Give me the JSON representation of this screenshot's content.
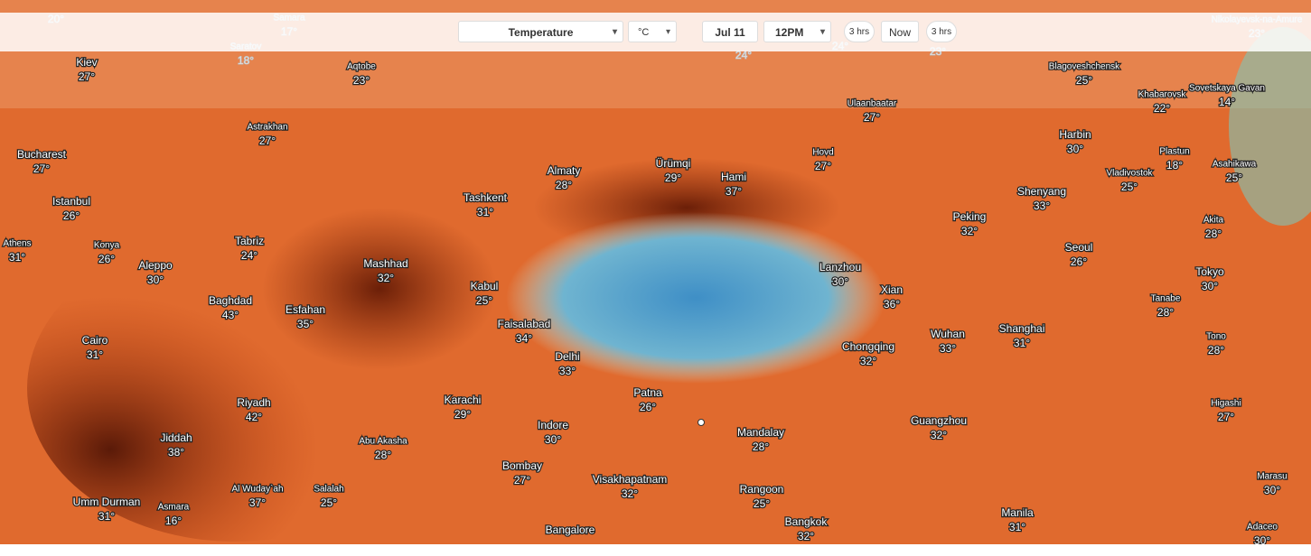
{
  "toolbar": {
    "layer": "Temperature",
    "unit": "°C",
    "date": "Jul 11",
    "time": "12PM",
    "back_step": "3 hrs",
    "now": "Now",
    "forward_step": "3 hrs"
  },
  "top_labels": [
    {
      "temp": "20°"
    },
    {
      "name": "Samara",
      "temp": "17°"
    },
    {
      "name": "Saratov",
      "temp": "18°"
    },
    {
      "temp": "24°"
    },
    {
      "temp": "24°"
    },
    {
      "temp": "23°"
    },
    {
      "name": "Nikolayevsk-na-Amure",
      "temp": "23°"
    }
  ],
  "places": [
    {
      "name": "Kiev",
      "temp": "27°"
    },
    {
      "name": "Aqtobe",
      "temp": "23°"
    },
    {
      "name": "Blagoveshchensk",
      "temp": "25°"
    },
    {
      "name": "Sovetskaya Gavan",
      "temp": "14°"
    },
    {
      "name": "Khabarovsk",
      "temp": "22°"
    },
    {
      "name": "Ulaanbaatar",
      "temp": "27°"
    },
    {
      "name": "Astrakhan",
      "temp": "27°"
    },
    {
      "name": "Harbin",
      "temp": "30°"
    },
    {
      "name": "Bucharest",
      "temp": "27°"
    },
    {
      "name": "Hovd",
      "temp": "27°"
    },
    {
      "name": "Plastun",
      "temp": "18°"
    },
    {
      "name": "Asahikawa",
      "temp": "25°"
    },
    {
      "name": "Almaty",
      "temp": "28°"
    },
    {
      "name": "Ürümqi",
      "temp": "29°"
    },
    {
      "name": "Hami",
      "temp": "37°"
    },
    {
      "name": "Vladivostok",
      "temp": "25°"
    },
    {
      "name": "Istanbul",
      "temp": "26°"
    },
    {
      "name": "Tashkent",
      "temp": "31°"
    },
    {
      "name": "Shenyang",
      "temp": "33°"
    },
    {
      "name": "Peking",
      "temp": "32°"
    },
    {
      "name": "Akita",
      "temp": "28°"
    },
    {
      "name": "Athens",
      "temp": "31°"
    },
    {
      "name": "Konya",
      "temp": "26°"
    },
    {
      "name": "Tabriz",
      "temp": "24°"
    },
    {
      "name": "Seoul",
      "temp": "26°"
    },
    {
      "name": "Aleppo",
      "temp": "30°"
    },
    {
      "name": "Mashhad",
      "temp": "32°"
    },
    {
      "name": "Lanzhou",
      "temp": "30°"
    },
    {
      "name": "Tokyo",
      "temp": "30°"
    },
    {
      "name": "Kabul",
      "temp": "25°"
    },
    {
      "name": "Xian",
      "temp": "36°"
    },
    {
      "name": "Tanabe",
      "temp": "28°"
    },
    {
      "name": "Baghdad",
      "temp": "43°"
    },
    {
      "name": "Esfahan",
      "temp": "35°"
    },
    {
      "name": "Faisalabad",
      "temp": "34°"
    },
    {
      "name": "Shanghai",
      "temp": "31°"
    },
    {
      "name": "Wuhan",
      "temp": "33°"
    },
    {
      "name": "Tono",
      "temp": "28°"
    },
    {
      "name": "Cairo",
      "temp": "31°"
    },
    {
      "name": "Chongqing",
      "temp": "32°"
    },
    {
      "name": "Delhi",
      "temp": "33°"
    },
    {
      "name": "Patna",
      "temp": "26°"
    },
    {
      "name": "Karachi",
      "temp": "29°"
    },
    {
      "name": "Riyadh",
      "temp": "42°"
    },
    {
      "name": "Higashi",
      "temp": "27°"
    },
    {
      "name": "Guangzhou",
      "temp": "32°"
    },
    {
      "name": "Indore",
      "temp": "30°"
    },
    {
      "name": "Mandalay",
      "temp": "28°"
    },
    {
      "name": "Jiddah",
      "temp": "38°"
    },
    {
      "name": "Abu Akasha",
      "temp": "28°"
    },
    {
      "name": "Bombay",
      "temp": "27°"
    },
    {
      "name": "Visakhapatnam",
      "temp": "32°"
    },
    {
      "name": "Marasu",
      "temp": "30°"
    },
    {
      "name": "Al Wuday`ah",
      "temp": "37°"
    },
    {
      "name": "Salalah",
      "temp": "25°"
    },
    {
      "name": "Rangoon",
      "temp": "25°"
    },
    {
      "name": "Umm Durman",
      "temp": "31°"
    },
    {
      "name": "Asmara",
      "temp": "16°"
    },
    {
      "name": "Manila",
      "temp": "31°"
    },
    {
      "name": "Bangkok",
      "temp": "32°"
    },
    {
      "name": "Adaceo",
      "temp": "30°"
    },
    {
      "name": "Bangalore"
    }
  ]
}
